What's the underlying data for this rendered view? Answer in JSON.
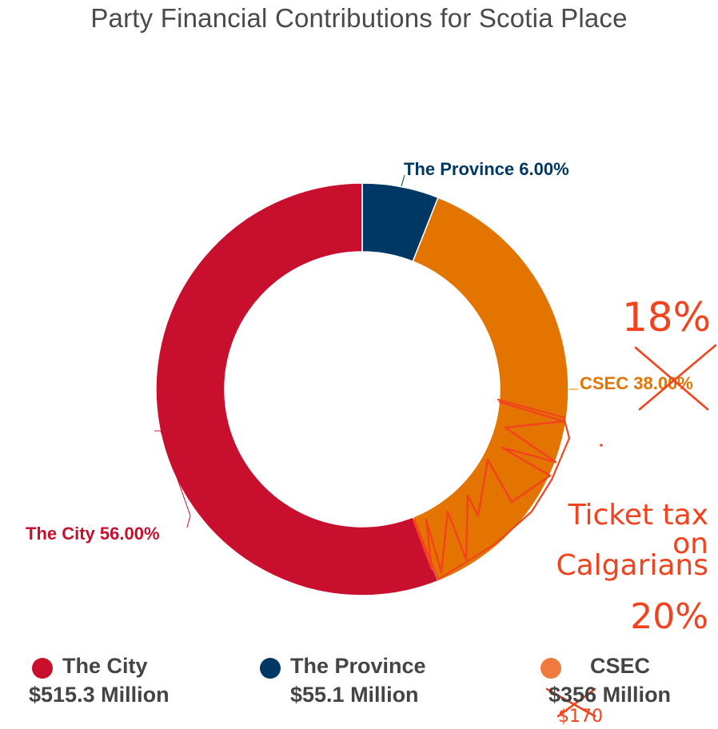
{
  "chart_data": {
    "type": "pie",
    "title": "Party Financial Contributions for Scotia Place",
    "donut": true,
    "categories": [
      "The City",
      "The Province",
      "CSEC"
    ],
    "values": [
      56.0,
      6.0,
      38.0
    ],
    "slice_labels": [
      "The City 56.00%",
      "The Province 6.00%",
      "CSEC 38.00%"
    ],
    "amounts": [
      "$515.3 Million",
      "$55.1 Million",
      "$356 Million"
    ],
    "colors": [
      "#c8102e",
      "#003865",
      "#e37400"
    ],
    "legend": "bottom"
  },
  "annotations": {
    "csec_new_pct": "18%",
    "ticket_tax_line1": "Ticket tax on",
    "ticket_tax_line2": "Calgarians",
    "ticket_tax_pct": "20%",
    "csec_new_amount": "$170"
  },
  "colors": {
    "annotation": "#f2421e"
  }
}
